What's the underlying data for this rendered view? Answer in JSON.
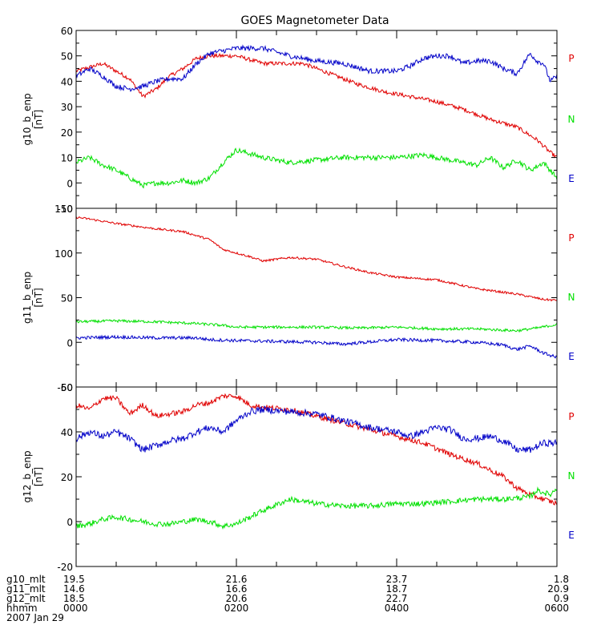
{
  "title": "GOES Magnetometer Data",
  "colors": {
    "P": "#e00000",
    "N": "#00e000",
    "E": "#0000c8",
    "axis": "#000000"
  },
  "footer": {
    "rows": [
      {
        "label": "g10_mlt",
        "values": [
          "19.5",
          "21.6",
          "23.7",
          "1.8"
        ]
      },
      {
        "label": "g11_mlt",
        "values": [
          "14.6",
          "16.6",
          "18.7",
          "20.9"
        ]
      },
      {
        "label": "g12_mlt",
        "values": [
          "18.5",
          "20.6",
          "22.7",
          "0.9"
        ]
      },
      {
        "label": "hhmm",
        "values": [
          "0000",
          "0200",
          "0400",
          "0600"
        ]
      }
    ],
    "date": "2007 Jan 29"
  },
  "chart_data": [
    {
      "type": "line",
      "ylabel": "g10_b_enp",
      "yunit": "[nT]",
      "ylim": [
        -10,
        60
      ],
      "yticks": [
        "60",
        "50",
        "40",
        "30",
        "20",
        "10",
        "0",
        "-10"
      ],
      "xlim": [
        0,
        360
      ],
      "x_unit": "minutes since 0000 UT",
      "legend": [
        "P",
        "N",
        "E"
      ],
      "series": [
        {
          "name": "P",
          "color": "#e00000",
          "noise": 0.8,
          "x": [
            0,
            20,
            40,
            50,
            60,
            70,
            80,
            90,
            100,
            120,
            140,
            170,
            180,
            190,
            210,
            230,
            250,
            270,
            290,
            310,
            330,
            345,
            355,
            360
          ],
          "y": [
            44,
            47,
            41,
            34,
            37,
            42,
            45,
            49,
            50,
            50,
            47,
            47,
            45,
            43,
            39,
            36,
            34,
            32,
            29,
            25,
            22,
            17,
            12,
            10
          ]
        },
        {
          "name": "N",
          "color": "#00e000",
          "noise": 1.0,
          "x": [
            0,
            10,
            20,
            30,
            40,
            50,
            60,
            70,
            80,
            90,
            100,
            110,
            120,
            140,
            160,
            180,
            200,
            220,
            240,
            260,
            280,
            300,
            310,
            320,
            330,
            340,
            350,
            360
          ],
          "y": [
            8,
            10,
            7,
            5,
            2,
            -1,
            0,
            0,
            1,
            0,
            2,
            8,
            13,
            10,
            8,
            9,
            10,
            10,
            10,
            11,
            9,
            7,
            10,
            6,
            9,
            5,
            8,
            2
          ]
        },
        {
          "name": "E",
          "color": "#0000c8",
          "noise": 1.0,
          "x": [
            0,
            10,
            20,
            30,
            40,
            50,
            60,
            70,
            80,
            90,
            100,
            120,
            140,
            160,
            180,
            200,
            220,
            240,
            250,
            260,
            270,
            280,
            290,
            300,
            310,
            320,
            330,
            340,
            345,
            350,
            355,
            360
          ],
          "y": [
            42,
            45,
            42,
            38,
            37,
            38,
            40,
            41,
            41,
            47,
            51,
            53,
            53,
            50,
            48,
            47,
            44,
            44,
            46,
            49,
            50,
            50,
            47,
            48,
            48,
            45,
            43,
            51,
            48,
            47,
            40,
            42
          ]
        }
      ]
    },
    {
      "type": "line",
      "ylabel": "g11_b_enp",
      "yunit": "[nT]",
      "ylim": [
        -50,
        150
      ],
      "yticks": [
        "150",
        "100",
        "50",
        "0",
        "-50"
      ],
      "xlim": [
        0,
        360
      ],
      "x_unit": "minutes since 0000 UT",
      "legend": [
        "P",
        "N",
        "E"
      ],
      "series": [
        {
          "name": "P",
          "color": "#e00000",
          "noise": 1.2,
          "x": [
            0,
            10,
            30,
            60,
            80,
            100,
            110,
            120,
            130,
            140,
            160,
            180,
            200,
            220,
            240,
            270,
            300,
            330,
            350,
            360
          ],
          "y": [
            140,
            138,
            133,
            127,
            124,
            115,
            104,
            100,
            96,
            91,
            95,
            93,
            85,
            78,
            73,
            70,
            60,
            54,
            48,
            47
          ]
        },
        {
          "name": "N",
          "color": "#00e000",
          "noise": 1.5,
          "x": [
            0,
            30,
            60,
            90,
            110,
            120,
            150,
            180,
            210,
            240,
            270,
            300,
            330,
            345,
            360
          ],
          "y": [
            23,
            24,
            23,
            21,
            19,
            17,
            17,
            17,
            16,
            17,
            15,
            15,
            13,
            16,
            20
          ]
        },
        {
          "name": "E",
          "color": "#0000c8",
          "noise": 1.8,
          "x": [
            0,
            30,
            60,
            90,
            100,
            120,
            150,
            180,
            200,
            240,
            270,
            300,
            320,
            330,
            340,
            350,
            360
          ],
          "y": [
            5,
            6,
            5,
            5,
            3,
            2,
            1,
            0,
            -2,
            3,
            2,
            0,
            -3,
            -8,
            -4,
            -12,
            -17
          ]
        }
      ]
    },
    {
      "type": "line",
      "ylabel": "g12_b_enp",
      "yunit": "[nT]",
      "ylim": [
        -20,
        60
      ],
      "yticks": [
        "60",
        "40",
        "20",
        "0",
        "-20"
      ],
      "xlim": [
        0,
        360
      ],
      "x_unit": "minutes since 0000 UT",
      "legend": [
        "P",
        "N",
        "E"
      ],
      "series": [
        {
          "name": "P",
          "color": "#e00000",
          "noise": 1.2,
          "x": [
            0,
            10,
            20,
            30,
            40,
            50,
            60,
            70,
            80,
            90,
            100,
            110,
            120,
            130,
            140,
            160,
            180,
            200,
            220,
            240,
            260,
            280,
            300,
            320,
            330,
            340,
            350,
            360
          ],
          "y": [
            52,
            50,
            55,
            55,
            48,
            52,
            47,
            48,
            49,
            52,
            53,
            56,
            56,
            52,
            51,
            50,
            47,
            44,
            41,
            38,
            35,
            30,
            26,
            20,
            15,
            12,
            10,
            8
          ]
        },
        {
          "name": "N",
          "color": "#00e000",
          "noise": 1.2,
          "x": [
            0,
            10,
            20,
            30,
            40,
            50,
            60,
            70,
            80,
            90,
            100,
            110,
            120,
            140,
            160,
            180,
            200,
            220,
            240,
            260,
            280,
            300,
            320,
            340,
            345,
            350,
            355,
            360
          ],
          "y": [
            -2,
            -1,
            1,
            2,
            1,
            0,
            -1,
            -1,
            0,
            1,
            0,
            -2,
            -1,
            5,
            10,
            8,
            7,
            7,
            8,
            8,
            9,
            10,
            10,
            11,
            14,
            13,
            12,
            15
          ]
        },
        {
          "name": "E",
          "color": "#0000c8",
          "noise": 1.5,
          "x": [
            0,
            10,
            20,
            30,
            40,
            50,
            60,
            70,
            80,
            90,
            100,
            110,
            120,
            130,
            140,
            160,
            180,
            200,
            220,
            240,
            250,
            260,
            270,
            280,
            290,
            300,
            310,
            320,
            330,
            340,
            350,
            360
          ],
          "y": [
            37,
            40,
            38,
            40,
            37,
            32,
            34,
            36,
            37,
            40,
            42,
            40,
            45,
            49,
            50,
            49,
            48,
            45,
            42,
            40,
            38,
            40,
            42,
            41,
            37,
            37,
            38,
            36,
            32,
            32,
            35,
            35
          ]
        }
      ]
    }
  ]
}
